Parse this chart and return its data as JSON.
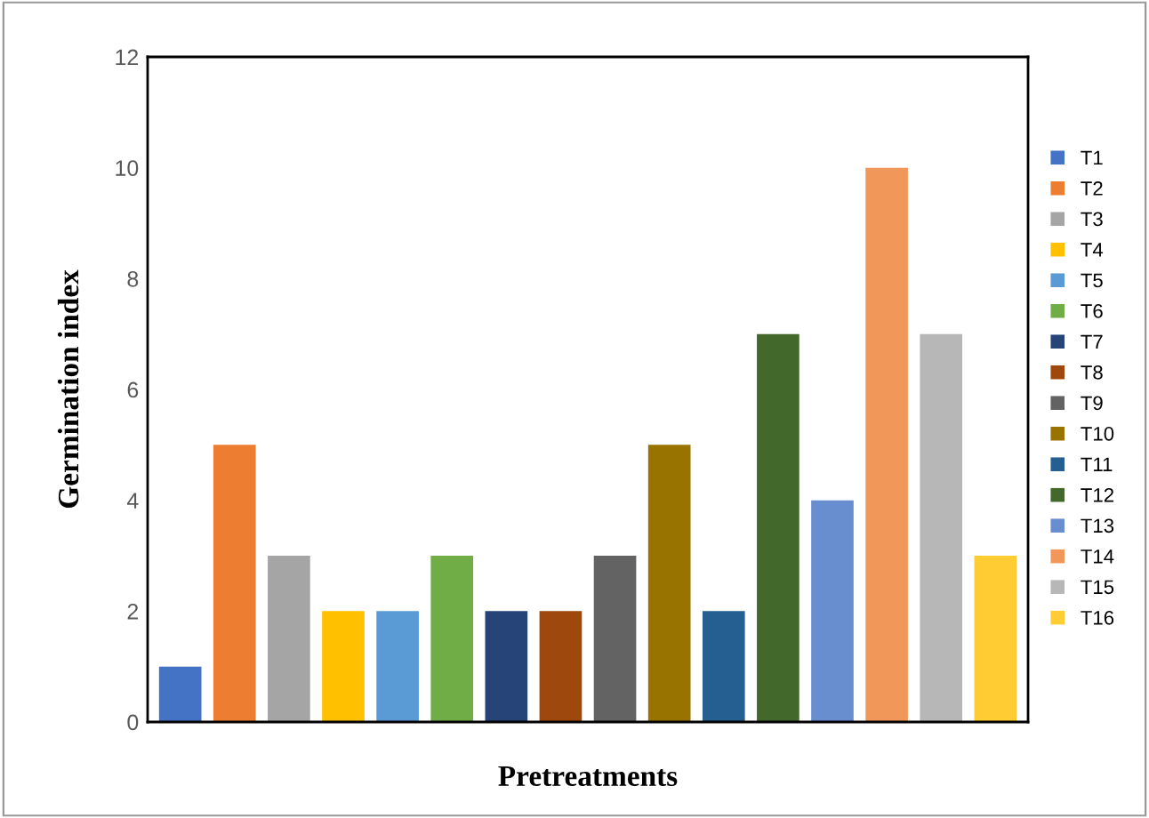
{
  "chart_data": {
    "type": "bar",
    "xlabel": "Pretreatments",
    "ylabel": "Germination index",
    "categories": [
      null,
      null,
      null,
      null,
      null,
      null,
      null,
      null,
      null,
      null,
      null,
      null,
      null,
      null,
      null,
      null
    ],
    "series": [
      {
        "name": "T1",
        "color": "#4472c4",
        "values": [
          1,
          null,
          null,
          null,
          null,
          null,
          null,
          null,
          null,
          null,
          null,
          null,
          null,
          null,
          null,
          null
        ]
      },
      {
        "name": "T2",
        "color": "#ed7d31",
        "values": [
          null,
          5,
          null,
          null,
          null,
          null,
          null,
          null,
          null,
          null,
          null,
          null,
          null,
          null,
          null,
          null
        ]
      },
      {
        "name": "T3",
        "color": "#a5a5a5",
        "values": [
          null,
          null,
          3,
          null,
          null,
          null,
          null,
          null,
          null,
          null,
          null,
          null,
          null,
          null,
          null,
          null
        ]
      },
      {
        "name": "T4",
        "color": "#ffc000",
        "values": [
          null,
          null,
          null,
          2,
          null,
          null,
          null,
          null,
          null,
          null,
          null,
          null,
          null,
          null,
          null,
          null
        ]
      },
      {
        "name": "T5",
        "color": "#5b9bd5",
        "values": [
          null,
          null,
          null,
          null,
          2,
          null,
          null,
          null,
          null,
          null,
          null,
          null,
          null,
          null,
          null,
          null
        ]
      },
      {
        "name": "T6",
        "color": "#70ad47",
        "values": [
          null,
          null,
          null,
          null,
          null,
          3,
          null,
          null,
          null,
          null,
          null,
          null,
          null,
          null,
          null,
          null
        ]
      },
      {
        "name": "T7",
        "color": "#264478",
        "values": [
          null,
          null,
          null,
          null,
          null,
          null,
          2,
          null,
          null,
          null,
          null,
          null,
          null,
          null,
          null,
          null
        ]
      },
      {
        "name": "T8",
        "color": "#9e480e",
        "values": [
          null,
          null,
          null,
          null,
          null,
          null,
          null,
          2,
          null,
          null,
          null,
          null,
          null,
          null,
          null,
          null
        ]
      },
      {
        "name": "T9",
        "color": "#636363",
        "values": [
          null,
          null,
          null,
          null,
          null,
          null,
          null,
          null,
          3,
          null,
          null,
          null,
          null,
          null,
          null,
          null
        ]
      },
      {
        "name": "T10",
        "color": "#997300",
        "values": [
          null,
          null,
          null,
          null,
          null,
          null,
          null,
          null,
          null,
          5,
          null,
          null,
          null,
          null,
          null,
          null
        ]
      },
      {
        "name": "T11",
        "color": "#255e91",
        "values": [
          null,
          null,
          null,
          null,
          null,
          null,
          null,
          null,
          null,
          null,
          2,
          null,
          null,
          null,
          null,
          null
        ]
      },
      {
        "name": "T12",
        "color": "#43682b",
        "values": [
          null,
          null,
          null,
          null,
          null,
          null,
          null,
          null,
          null,
          null,
          null,
          7,
          null,
          null,
          null,
          null
        ]
      },
      {
        "name": "T13",
        "color": "#698ed0",
        "values": [
          null,
          null,
          null,
          null,
          null,
          null,
          null,
          null,
          null,
          null,
          null,
          null,
          4,
          null,
          null,
          null
        ]
      },
      {
        "name": "T14",
        "color": "#f1975a",
        "values": [
          null,
          null,
          null,
          null,
          null,
          null,
          null,
          null,
          null,
          null,
          null,
          null,
          null,
          10,
          null,
          null
        ]
      },
      {
        "name": "T15",
        "color": "#b7b7b7",
        "values": [
          null,
          null,
          null,
          null,
          null,
          null,
          null,
          null,
          null,
          null,
          null,
          null,
          null,
          null,
          7,
          null
        ]
      },
      {
        "name": "T16",
        "color": "#ffcd33",
        "values": [
          null,
          null,
          null,
          null,
          null,
          null,
          null,
          null,
          null,
          null,
          null,
          null,
          null,
          null,
          null,
          3
        ]
      }
    ],
    "ylim": [
      0,
      12
    ],
    "yticks": [
      0,
      2,
      4,
      6,
      8,
      10,
      12
    ],
    "grid": false,
    "legend": "right"
  }
}
